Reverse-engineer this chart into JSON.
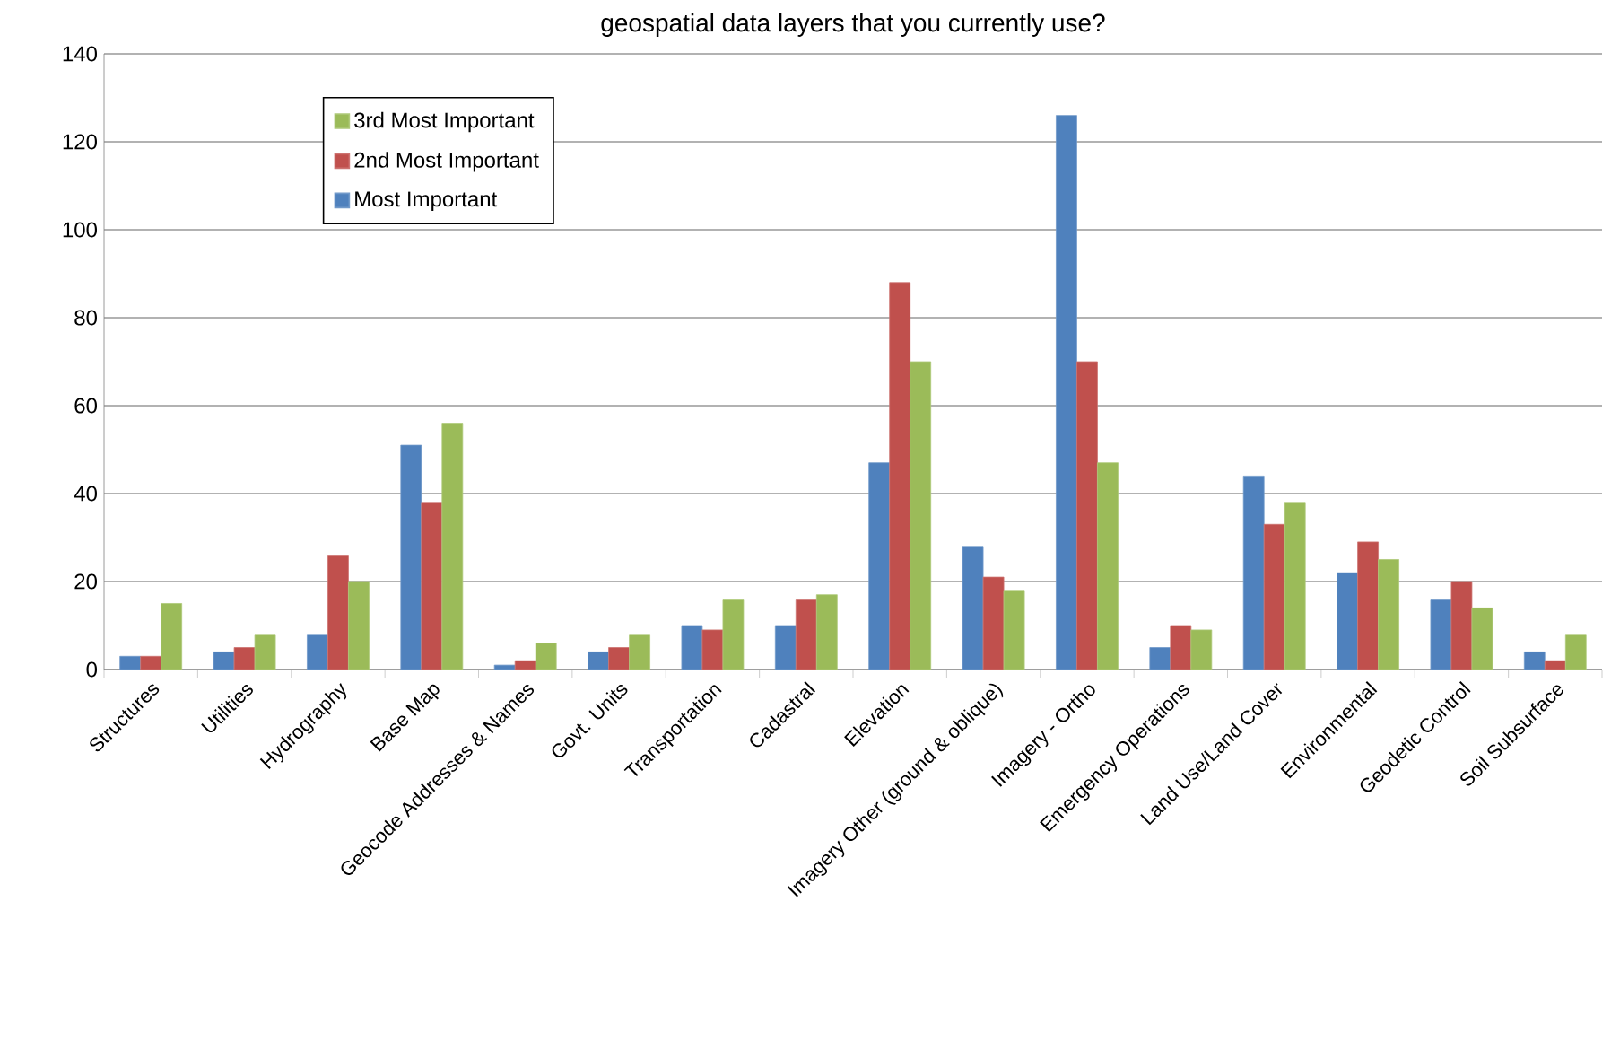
{
  "chart_data": {
    "type": "bar",
    "title": "geospatial data layers that you currently use?",
    "categories": [
      "Structures",
      "Utilities",
      "Hydrography",
      "Base Map",
      "Geocode Addresses & Names",
      "Govt. Units",
      "Transportation",
      "Cadastral",
      "Elevation",
      "Imagery Other (ground & oblique)",
      "Imagery - Ortho",
      "Emergency Operations",
      "Land Use/Land Cover",
      "Environmental",
      "Geodetic Control",
      "Soil Subsurface"
    ],
    "series": [
      {
        "name": "Most Important",
        "color": "#4f81bd",
        "values": [
          3,
          4,
          8,
          51,
          1,
          4,
          10,
          10,
          47,
          28,
          126,
          5,
          44,
          22,
          16,
          4
        ]
      },
      {
        "name": "2nd Most Important",
        "color": "#c0504d",
        "values": [
          3,
          5,
          26,
          38,
          2,
          5,
          9,
          16,
          88,
          21,
          70,
          10,
          33,
          29,
          20,
          2
        ]
      },
      {
        "name": "3rd Most Important",
        "color": "#9bbb59",
        "values": [
          15,
          8,
          20,
          56,
          6,
          8,
          16,
          17,
          70,
          18,
          47,
          9,
          38,
          25,
          14,
          8
        ]
      }
    ],
    "ylim": [
      0,
      140
    ],
    "yticks": [
      0,
      20,
      40,
      60,
      80,
      100,
      120,
      140
    ],
    "grid": "y",
    "legend": "top left"
  }
}
